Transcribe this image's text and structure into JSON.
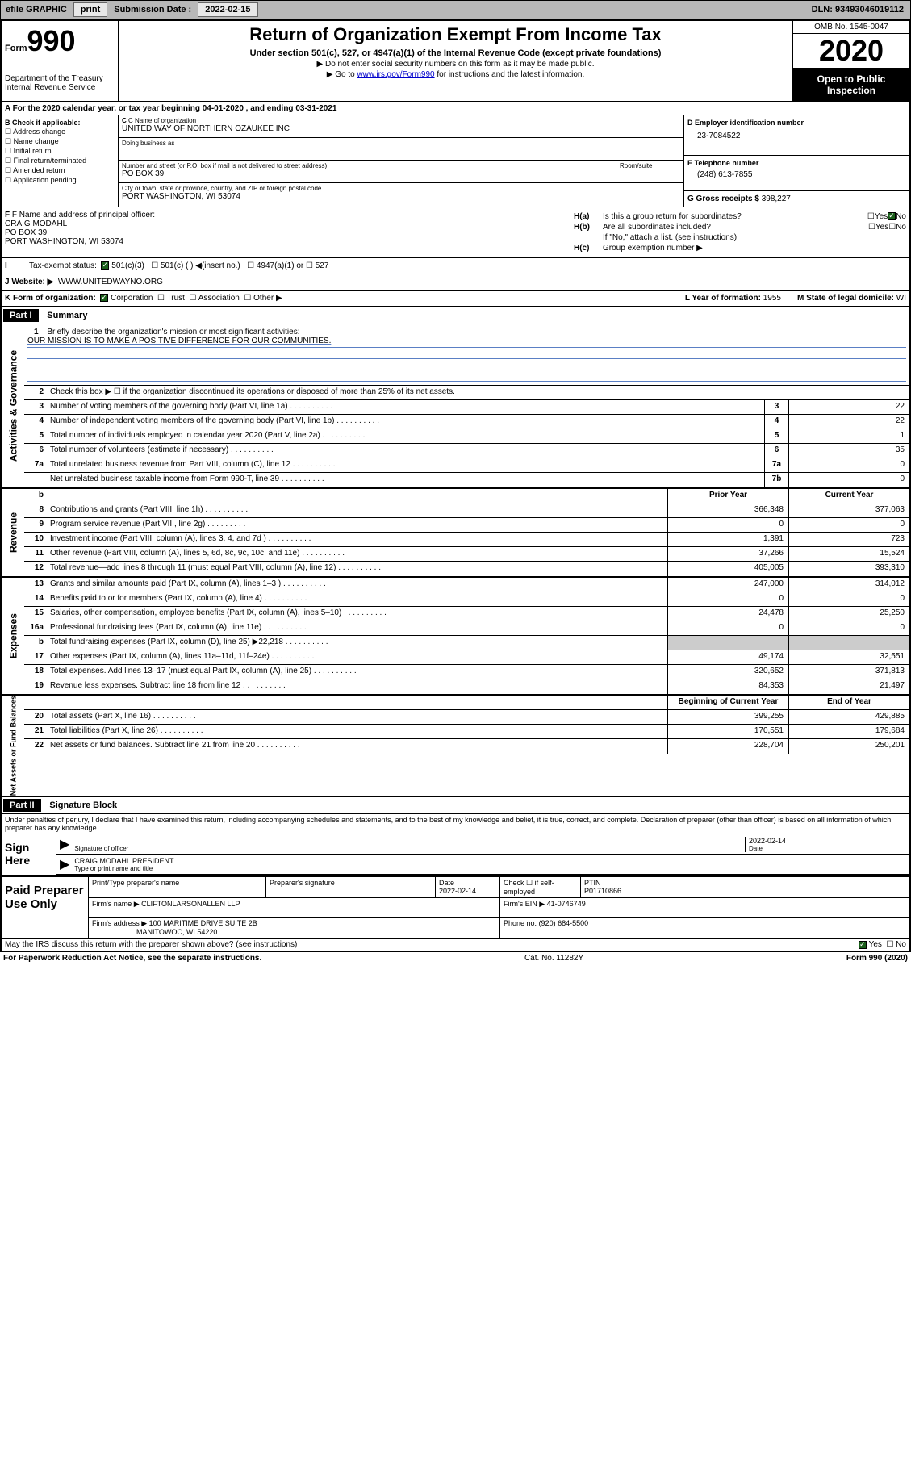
{
  "topbar": {
    "efile": "efile GRAPHIC",
    "print": "print",
    "sub_label": "Submission Date :",
    "sub_date": "2022-02-15",
    "dln": "DLN: 93493046019112"
  },
  "header": {
    "form_prefix": "Form",
    "form_num": "990",
    "dept": "Department of the Treasury\nInternal Revenue Service",
    "title": "Return of Organization Exempt From Income Tax",
    "sub": "Under section 501(c), 527, or 4947(a)(1) of the Internal Revenue Code (except private foundations)",
    "note1": "▶ Do not enter social security numbers on this form as it may be made public.",
    "note2_pre": "▶ Go to ",
    "note2_link": "www.irs.gov/Form990",
    "note2_post": " for instructions and the latest information.",
    "omb": "OMB No. 1545-0047",
    "year": "2020",
    "open": "Open to Public Inspection"
  },
  "row_a": "A For the 2020 calendar year, or tax year beginning 04-01-2020   , and ending 03-31-2021",
  "section_b": {
    "b_label": "B Check if applicable:",
    "checks": [
      "Address change",
      "Name change",
      "Initial return",
      "Final return/terminated",
      "Amended return",
      "Application pending"
    ],
    "c_label": "C Name of organization",
    "org_name": "UNITED WAY OF NORTHERN OZAUKEE INC",
    "dba_label": "Doing business as",
    "dba": "",
    "addr_label": "Number and street (or P.O. box if mail is not delivered to street address)",
    "room_label": "Room/suite",
    "addr": "PO BOX 39",
    "city_label": "City or town, state or province, country, and ZIP or foreign postal code",
    "city": "PORT WASHINGTON, WI  53074",
    "d_label": "D Employer identification number",
    "ein": "23-7084522",
    "e_label": "E Telephone number",
    "phone": "(248) 613-7855",
    "g_label": "G Gross receipts $",
    "gross": "398,227"
  },
  "section_f": {
    "f_label": "F Name and address of principal officer:",
    "name": "CRAIG MODAHL",
    "addr1": "PO BOX 39",
    "addr2": "PORT WASHINGTON, WI  53074",
    "tax_label": "Tax-exempt status:",
    "status_501c3": "501(c)(3)",
    "status_501c": "501(c) (  ) ◀(insert no.)",
    "status_4947": "4947(a)(1) or",
    "status_527": "527",
    "j_label": "J    Website: ▶",
    "website": "WWW.UNITEDWAYNO.ORG"
  },
  "section_h": {
    "ha_label": "H(a)",
    "ha_text": "Is this a group return for subordinates?",
    "hb_label": "H(b)",
    "hb_text": "Are all subordinates included?",
    "hb_note": "If \"No,\" attach a list. (see instructions)",
    "hc_label": "H(c)",
    "hc_text": "Group exemption number ▶",
    "yes": "Yes",
    "no": "No"
  },
  "row_k": {
    "k_label": "K Form of organization:",
    "corp": "Corporation",
    "trust": "Trust",
    "assoc": "Association",
    "other": "Other ▶",
    "l_label": "L Year of formation:",
    "l_val": "1955",
    "m_label": "M State of legal domicile:",
    "m_val": "WI"
  },
  "part1": {
    "label": "Part I",
    "title": "Summary"
  },
  "mission": {
    "num": "1",
    "label": "Briefly describe the organization's mission or most significant activities:",
    "text": "OUR MISSION IS TO MAKE A POSITIVE DIFFERENCE FOR OUR COMMUNITIES."
  },
  "gov_lines": [
    {
      "n": "2",
      "d": "Check this box ▶ ☐  if the organization discontinued its operations or disposed of more than 25% of its net assets.",
      "c": "",
      "v": ""
    },
    {
      "n": "3",
      "d": "Number of voting members of the governing body (Part VI, line 1a)",
      "c": "3",
      "v": "22"
    },
    {
      "n": "4",
      "d": "Number of independent voting members of the governing body (Part VI, line 1b)",
      "c": "4",
      "v": "22"
    },
    {
      "n": "5",
      "d": "Total number of individuals employed in calendar year 2020 (Part V, line 2a)",
      "c": "5",
      "v": "1"
    },
    {
      "n": "6",
      "d": "Total number of volunteers (estimate if necessary)",
      "c": "6",
      "v": "35"
    },
    {
      "n": "7a",
      "d": "Total unrelated business revenue from Part VIII, column (C), line 12",
      "c": "7a",
      "v": "0"
    },
    {
      "n": "",
      "d": "Net unrelated business taxable income from Form 990-T, line 39",
      "c": "7b",
      "v": "0"
    }
  ],
  "col_headers": {
    "prior": "Prior Year",
    "current": "Current Year",
    "begin": "Beginning of Current Year",
    "end": "End of Year"
  },
  "rev_lines": [
    {
      "n": "8",
      "d": "Contributions and grants (Part VIII, line 1h)",
      "p": "366,348",
      "c": "377,063"
    },
    {
      "n": "9",
      "d": "Program service revenue (Part VIII, line 2g)",
      "p": "0",
      "c": "0"
    },
    {
      "n": "10",
      "d": "Investment income (Part VIII, column (A), lines 3, 4, and 7d )",
      "p": "1,391",
      "c": "723"
    },
    {
      "n": "11",
      "d": "Other revenue (Part VIII, column (A), lines 5, 6d, 8c, 9c, 10c, and 11e)",
      "p": "37,266",
      "c": "15,524"
    },
    {
      "n": "12",
      "d": "Total revenue—add lines 8 through 11 (must equal Part VIII, column (A), line 12)",
      "p": "405,005",
      "c": "393,310"
    }
  ],
  "exp_lines": [
    {
      "n": "13",
      "d": "Grants and similar amounts paid (Part IX, column (A), lines 1–3 )",
      "p": "247,000",
      "c": "314,012"
    },
    {
      "n": "14",
      "d": "Benefits paid to or for members (Part IX, column (A), line 4)",
      "p": "0",
      "c": "0"
    },
    {
      "n": "15",
      "d": "Salaries, other compensation, employee benefits (Part IX, column (A), lines 5–10)",
      "p": "24,478",
      "c": "25,250"
    },
    {
      "n": "16a",
      "d": "Professional fundraising fees (Part IX, column (A), line 11e)",
      "p": "0",
      "c": "0"
    },
    {
      "n": "b",
      "d": "Total fundraising expenses (Part IX, column (D), line 25) ▶22,218",
      "p": "",
      "c": "",
      "shade": true
    },
    {
      "n": "17",
      "d": "Other expenses (Part IX, column (A), lines 11a–11d, 11f–24e)",
      "p": "49,174",
      "c": "32,551"
    },
    {
      "n": "18",
      "d": "Total expenses. Add lines 13–17 (must equal Part IX, column (A), line 25)",
      "p": "320,652",
      "c": "371,813"
    },
    {
      "n": "19",
      "d": "Revenue less expenses. Subtract line 18 from line 12",
      "p": "84,353",
      "c": "21,497"
    }
  ],
  "net_lines": [
    {
      "n": "20",
      "d": "Total assets (Part X, line 16)",
      "p": "399,255",
      "c": "429,885"
    },
    {
      "n": "21",
      "d": "Total liabilities (Part X, line 26)",
      "p": "170,551",
      "c": "179,684"
    },
    {
      "n": "22",
      "d": "Net assets or fund balances. Subtract line 21 from line 20",
      "p": "228,704",
      "c": "250,201"
    }
  ],
  "vert": {
    "gov": "Activities & Governance",
    "rev": "Revenue",
    "exp": "Expenses",
    "net": "Net Assets or Fund Balances"
  },
  "part2": {
    "label": "Part II",
    "title": "Signature Block"
  },
  "sig": {
    "decl": "Under penalties of perjury, I declare that I have examined this return, including accompanying schedules and statements, and to the best of my knowledge and belief, it is true, correct, and complete. Declaration of preparer (other than officer) is based on all information of which preparer has any knowledge.",
    "sign_here": "Sign Here",
    "sig_label": "Signature of officer",
    "date_label": "Date",
    "date": "2022-02-14",
    "name": "CRAIG MODAHL PRESIDENT",
    "name_label": "Type or print name and title"
  },
  "prep": {
    "title": "Paid Preparer Use Only",
    "h1": "Print/Type preparer's name",
    "h2": "Preparer's signature",
    "h3": "Date",
    "h3v": "2022-02-14",
    "h4": "Check ☐ if self-employed",
    "h5": "PTIN",
    "h5v": "P01710866",
    "firm_label": "Firm's name    ▶",
    "firm": "CLIFTONLARSONALLEN LLP",
    "ein_label": "Firm's EIN ▶",
    "ein": "41-0746749",
    "addr_label": "Firm's address ▶",
    "addr1": "100 MARITIME DRIVE SUITE 2B",
    "addr2": "MANITOWOC, WI  54220",
    "phone_label": "Phone no.",
    "phone": "(920) 684-5500"
  },
  "bottom": {
    "q": "May the IRS discuss this return with the preparer shown above? (see instructions)",
    "yes": "Yes",
    "no": "No"
  },
  "footer": {
    "left": "For Paperwork Reduction Act Notice, see the separate instructions.",
    "mid": "Cat. No. 11282Y",
    "right": "Form 990 (2020)"
  }
}
